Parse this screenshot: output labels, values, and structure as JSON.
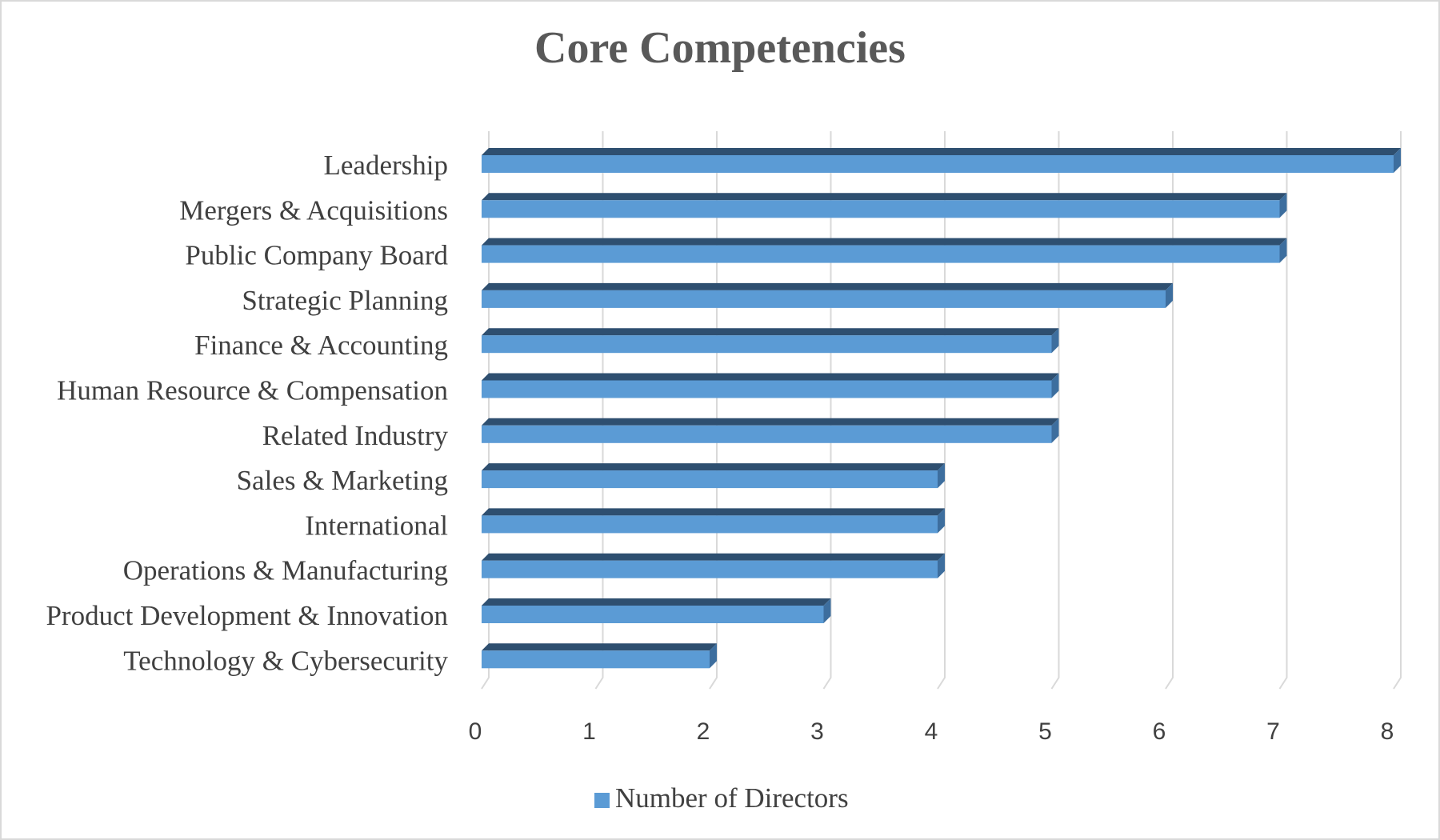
{
  "chart_data": {
    "type": "bar",
    "orientation": "horizontal",
    "title": "Core Competencies",
    "categories": [
      "Leadership",
      "Mergers & Acquisitions",
      "Public Company Board",
      "Strategic Planning",
      "Finance & Accounting",
      "Human Resource & Compensation",
      "Related Industry",
      "Sales & Marketing",
      "International",
      "Operations & Manufacturing",
      "Product Development & Innovation",
      "Technology & Cybersecurity"
    ],
    "series": [
      {
        "name": "Number of Directors",
        "values": [
          8,
          7,
          7,
          6,
          5,
          5,
          5,
          4,
          4,
          4,
          3,
          2
        ]
      }
    ],
    "xlim": [
      0,
      8
    ],
    "xticks": [
      "0",
      "1",
      "2",
      "3",
      "4",
      "5",
      "6",
      "7",
      "8"
    ],
    "grid": true,
    "style": "3d",
    "legend_position": "bottom",
    "colors": {
      "bar_front": "#5b9bd5",
      "bar_top": "#2e4f70",
      "bar_side": "#3d6e9e",
      "grid": "#d9d9d9",
      "text": "#404040",
      "title": "#595959"
    }
  }
}
